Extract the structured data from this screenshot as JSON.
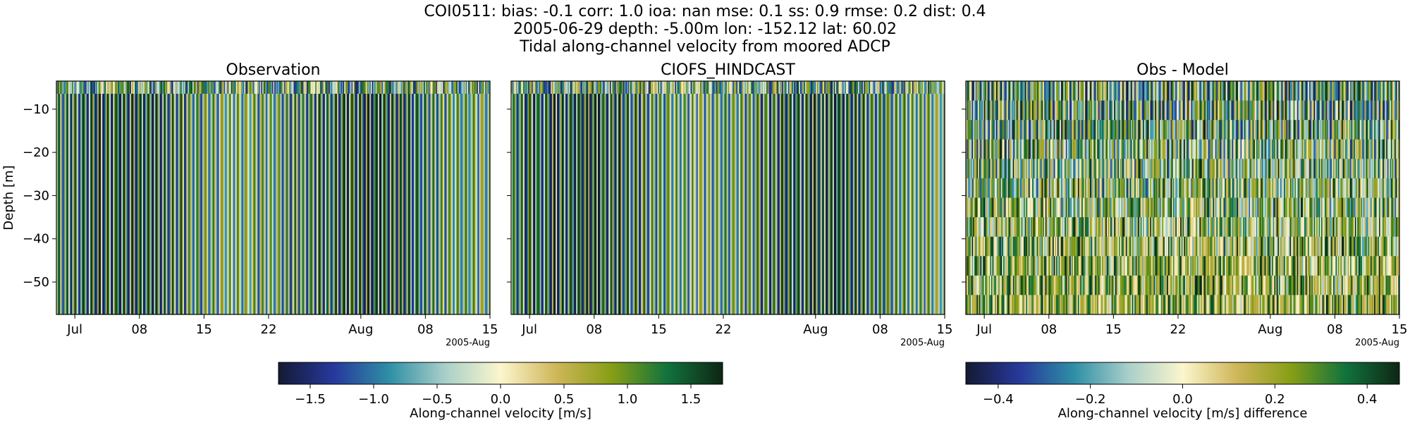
{
  "header": {
    "lines": [
      "COI0511: bias: -0.1  corr: 1.0  ioa: nan  mse: 0.1  ss: 0.9  rmse: 0.2  dist: 0.4",
      "2005-06-29 depth: -5.00m lon: -152.12 lat: 60.02",
      "Tidal along-channel velocity from moored ADCP"
    ]
  },
  "chart_data": [
    {
      "type": "heatmap",
      "title": "Observation",
      "ylabel": "Depth [m]",
      "xlim": [
        "2005-06-29",
        "2005-08-15"
      ],
      "ylim": [
        -57.5,
        -3.5
      ],
      "x_tick_labels": [
        "Jul",
        "08",
        "15",
        "22",
        "Aug",
        "08",
        "15"
      ],
      "x_offset_label": "2005-Aug",
      "y_ticks": [
        -10,
        -20,
        -30,
        -40,
        -50
      ],
      "y_tick_labels": [
        "−10",
        "−20",
        "−30",
        "−40",
        "−50"
      ],
      "colormap": "balance-style diverging (navy-teal-cream-olive-green-black)",
      "clim": [
        -1.75,
        1.75
      ]
    },
    {
      "type": "heatmap",
      "title": "CIOFS_HINDCAST",
      "xlim": [
        "2005-06-29",
        "2005-08-15"
      ],
      "ylim": [
        -57.5,
        -3.5
      ],
      "x_tick_labels": [
        "Jul",
        "08",
        "15",
        "22",
        "Aug",
        "08",
        "15"
      ],
      "x_offset_label": "2005-Aug",
      "colormap": "balance-style diverging",
      "clim": [
        -1.75,
        1.75
      ]
    },
    {
      "type": "heatmap",
      "title": "Obs - Model",
      "xlim": [
        "2005-06-29",
        "2005-08-15"
      ],
      "ylim": [
        -57.5,
        -3.5
      ],
      "x_tick_labels": [
        "Jul",
        "08",
        "15",
        "22",
        "Aug",
        "08",
        "15"
      ],
      "x_offset_label": "2005-Aug",
      "colormap": "balance-style diverging",
      "clim": [
        -0.47,
        0.47
      ]
    }
  ],
  "colorbars": [
    {
      "label": "Along-channel velocity [m/s]",
      "range": [
        -1.75,
        1.75
      ],
      "ticks": [
        -1.5,
        -1.0,
        -0.5,
        0.0,
        0.5,
        1.0,
        1.5
      ],
      "tick_labels": [
        "−1.5",
        "−1.0",
        "−0.5",
        "0.0",
        "0.5",
        "1.0",
        "1.5"
      ]
    },
    {
      "label": "Along-channel velocity [m/s] difference",
      "range": [
        -0.47,
        0.47
      ],
      "ticks": [
        -0.4,
        -0.2,
        0.0,
        0.2,
        0.4
      ],
      "tick_labels": [
        "−0.4",
        "−0.2",
        "0.0",
        "0.2",
        "0.4"
      ]
    }
  ],
  "colors": {
    "cmap": [
      "#141a33",
      "#27399c",
      "#2f8fa6",
      "#a9cfc9",
      "#fbf6cc",
      "#cfb65a",
      "#879e16",
      "#11733c",
      "#0e2614"
    ]
  }
}
